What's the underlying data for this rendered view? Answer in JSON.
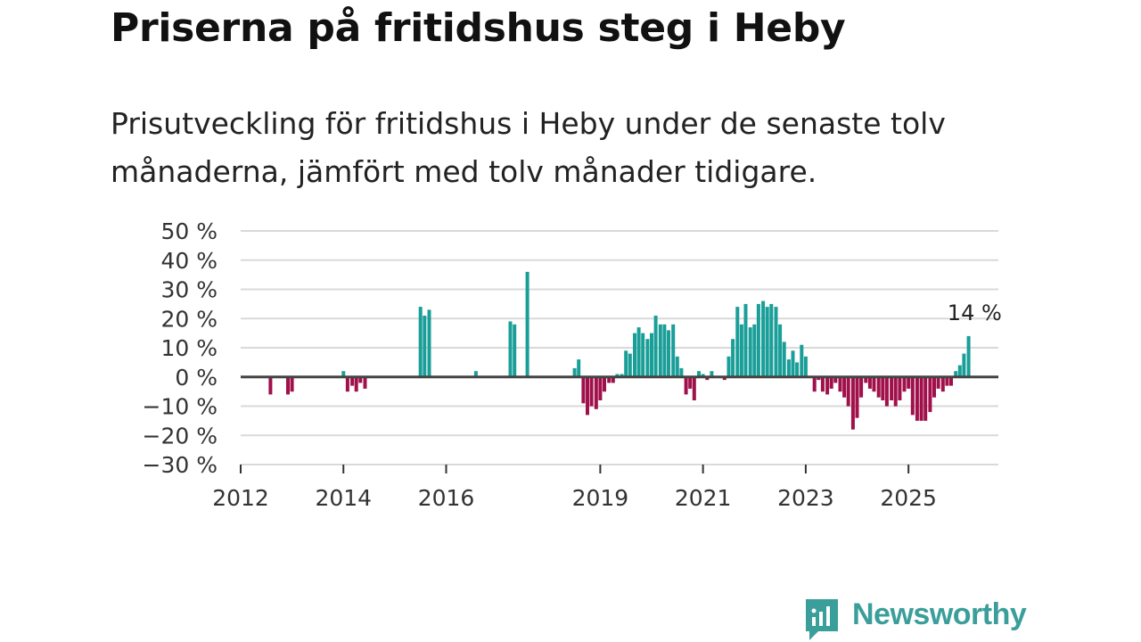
{
  "title": "Priserna på fritidshus steg i Heby",
  "subtitle": "Prisutveckling för fritidshus i Heby under de senaste tolv månaderna, jämfört med tolv månader tidigare.",
  "brand": {
    "name": "Newsworthy",
    "icon": "bar-chart-speech-bubble-icon"
  },
  "colors": {
    "positive": "#1a9e98",
    "negative": "#a0104a",
    "grid": "#d9d9d9",
    "zero": "#444444",
    "brand": "#3a9e9a"
  },
  "chart_data": {
    "type": "bar",
    "title": "Priserna på fritidshus steg i Heby",
    "ylabel": "",
    "xlabel": "",
    "ylim": [
      -30,
      50
    ],
    "yticks": [
      50,
      40,
      30,
      20,
      10,
      0,
      -10,
      -20,
      -30
    ],
    "ytick_labels": [
      "50 %",
      "40 %",
      "30 %",
      "20 %",
      "10 %",
      "0 %",
      "−10 %",
      "−20 %",
      "−30 %"
    ],
    "xlim": [
      2012.0,
      2026.75
    ],
    "xticks": [
      2012,
      2014,
      2016,
      2019,
      2021,
      2023,
      2025
    ],
    "xtick_labels": [
      "2012",
      "2014",
      "2016",
      "2019",
      "2021",
      "2023",
      "2025"
    ],
    "annotation": {
      "text": "14 %",
      "x": 2026.33,
      "value": 14
    },
    "series": [
      {
        "name": "Prisutveckling",
        "points": [
          [
            2012.58,
            -6
          ],
          [
            2012.92,
            -6
          ],
          [
            2013.0,
            -5
          ],
          [
            2014.0,
            2
          ],
          [
            2014.08,
            -5
          ],
          [
            2014.17,
            -3
          ],
          [
            2014.25,
            -5
          ],
          [
            2014.33,
            -2
          ],
          [
            2014.42,
            -4
          ],
          [
            2015.5,
            24
          ],
          [
            2015.58,
            21
          ],
          [
            2015.67,
            23
          ],
          [
            2016.58,
            2
          ],
          [
            2017.25,
            19
          ],
          [
            2017.33,
            18
          ],
          [
            2017.58,
            36
          ],
          [
            2018.5,
            3
          ],
          [
            2018.58,
            6
          ],
          [
            2018.67,
            -9
          ],
          [
            2018.75,
            -13
          ],
          [
            2018.83,
            -10
          ],
          [
            2018.92,
            -11
          ],
          [
            2019.0,
            -8
          ],
          [
            2019.08,
            -5
          ],
          [
            2019.17,
            -2
          ],
          [
            2019.25,
            -2
          ],
          [
            2019.33,
            1
          ],
          [
            2019.42,
            1
          ],
          [
            2019.5,
            9
          ],
          [
            2019.58,
            8
          ],
          [
            2019.67,
            15
          ],
          [
            2019.75,
            17
          ],
          [
            2019.83,
            15
          ],
          [
            2019.92,
            13
          ],
          [
            2020.0,
            15
          ],
          [
            2020.08,
            21
          ],
          [
            2020.17,
            18
          ],
          [
            2020.25,
            18
          ],
          [
            2020.33,
            16
          ],
          [
            2020.42,
            18
          ],
          [
            2020.5,
            7
          ],
          [
            2020.58,
            3
          ],
          [
            2020.67,
            -6
          ],
          [
            2020.75,
            -4
          ],
          [
            2020.83,
            -8
          ],
          [
            2020.92,
            2
          ],
          [
            2021.0,
            1
          ],
          [
            2021.08,
            -1
          ],
          [
            2021.17,
            2
          ],
          [
            2021.42,
            -1
          ],
          [
            2021.5,
            7
          ],
          [
            2021.58,
            13
          ],
          [
            2021.67,
            24
          ],
          [
            2021.75,
            18
          ],
          [
            2021.83,
            25
          ],
          [
            2021.92,
            17
          ],
          [
            2022.0,
            18
          ],
          [
            2022.08,
            25
          ],
          [
            2022.17,
            26
          ],
          [
            2022.25,
            24
          ],
          [
            2022.33,
            25
          ],
          [
            2022.42,
            24
          ],
          [
            2022.5,
            18
          ],
          [
            2022.58,
            12
          ],
          [
            2022.67,
            6
          ],
          [
            2022.75,
            9
          ],
          [
            2022.83,
            5
          ],
          [
            2022.92,
            11
          ],
          [
            2023.0,
            7
          ],
          [
            2023.17,
            -5
          ],
          [
            2023.25,
            -1
          ],
          [
            2023.33,
            -5
          ],
          [
            2023.42,
            -6
          ],
          [
            2023.5,
            -4
          ],
          [
            2023.58,
            -2
          ],
          [
            2023.67,
            -5
          ],
          [
            2023.75,
            -7
          ],
          [
            2023.83,
            -10
          ],
          [
            2023.92,
            -18
          ],
          [
            2024.0,
            -14
          ],
          [
            2024.08,
            -7
          ],
          [
            2024.17,
            -2
          ],
          [
            2024.25,
            -4
          ],
          [
            2024.33,
            -5
          ],
          [
            2024.42,
            -7
          ],
          [
            2024.5,
            -8
          ],
          [
            2024.58,
            -10
          ],
          [
            2024.67,
            -8
          ],
          [
            2024.75,
            -10
          ],
          [
            2024.83,
            -8
          ],
          [
            2024.92,
            -5
          ],
          [
            2025.0,
            -4
          ],
          [
            2025.08,
            -13
          ],
          [
            2025.17,
            -15
          ],
          [
            2025.25,
            -15
          ],
          [
            2025.33,
            -15
          ],
          [
            2025.42,
            -12
          ],
          [
            2025.5,
            -7
          ],
          [
            2025.58,
            -4
          ],
          [
            2025.67,
            -5
          ],
          [
            2025.75,
            -3
          ],
          [
            2025.83,
            -3
          ],
          [
            2025.92,
            2
          ],
          [
            2026.0,
            4
          ],
          [
            2026.08,
            8
          ],
          [
            2026.17,
            14
          ]
        ]
      }
    ]
  }
}
